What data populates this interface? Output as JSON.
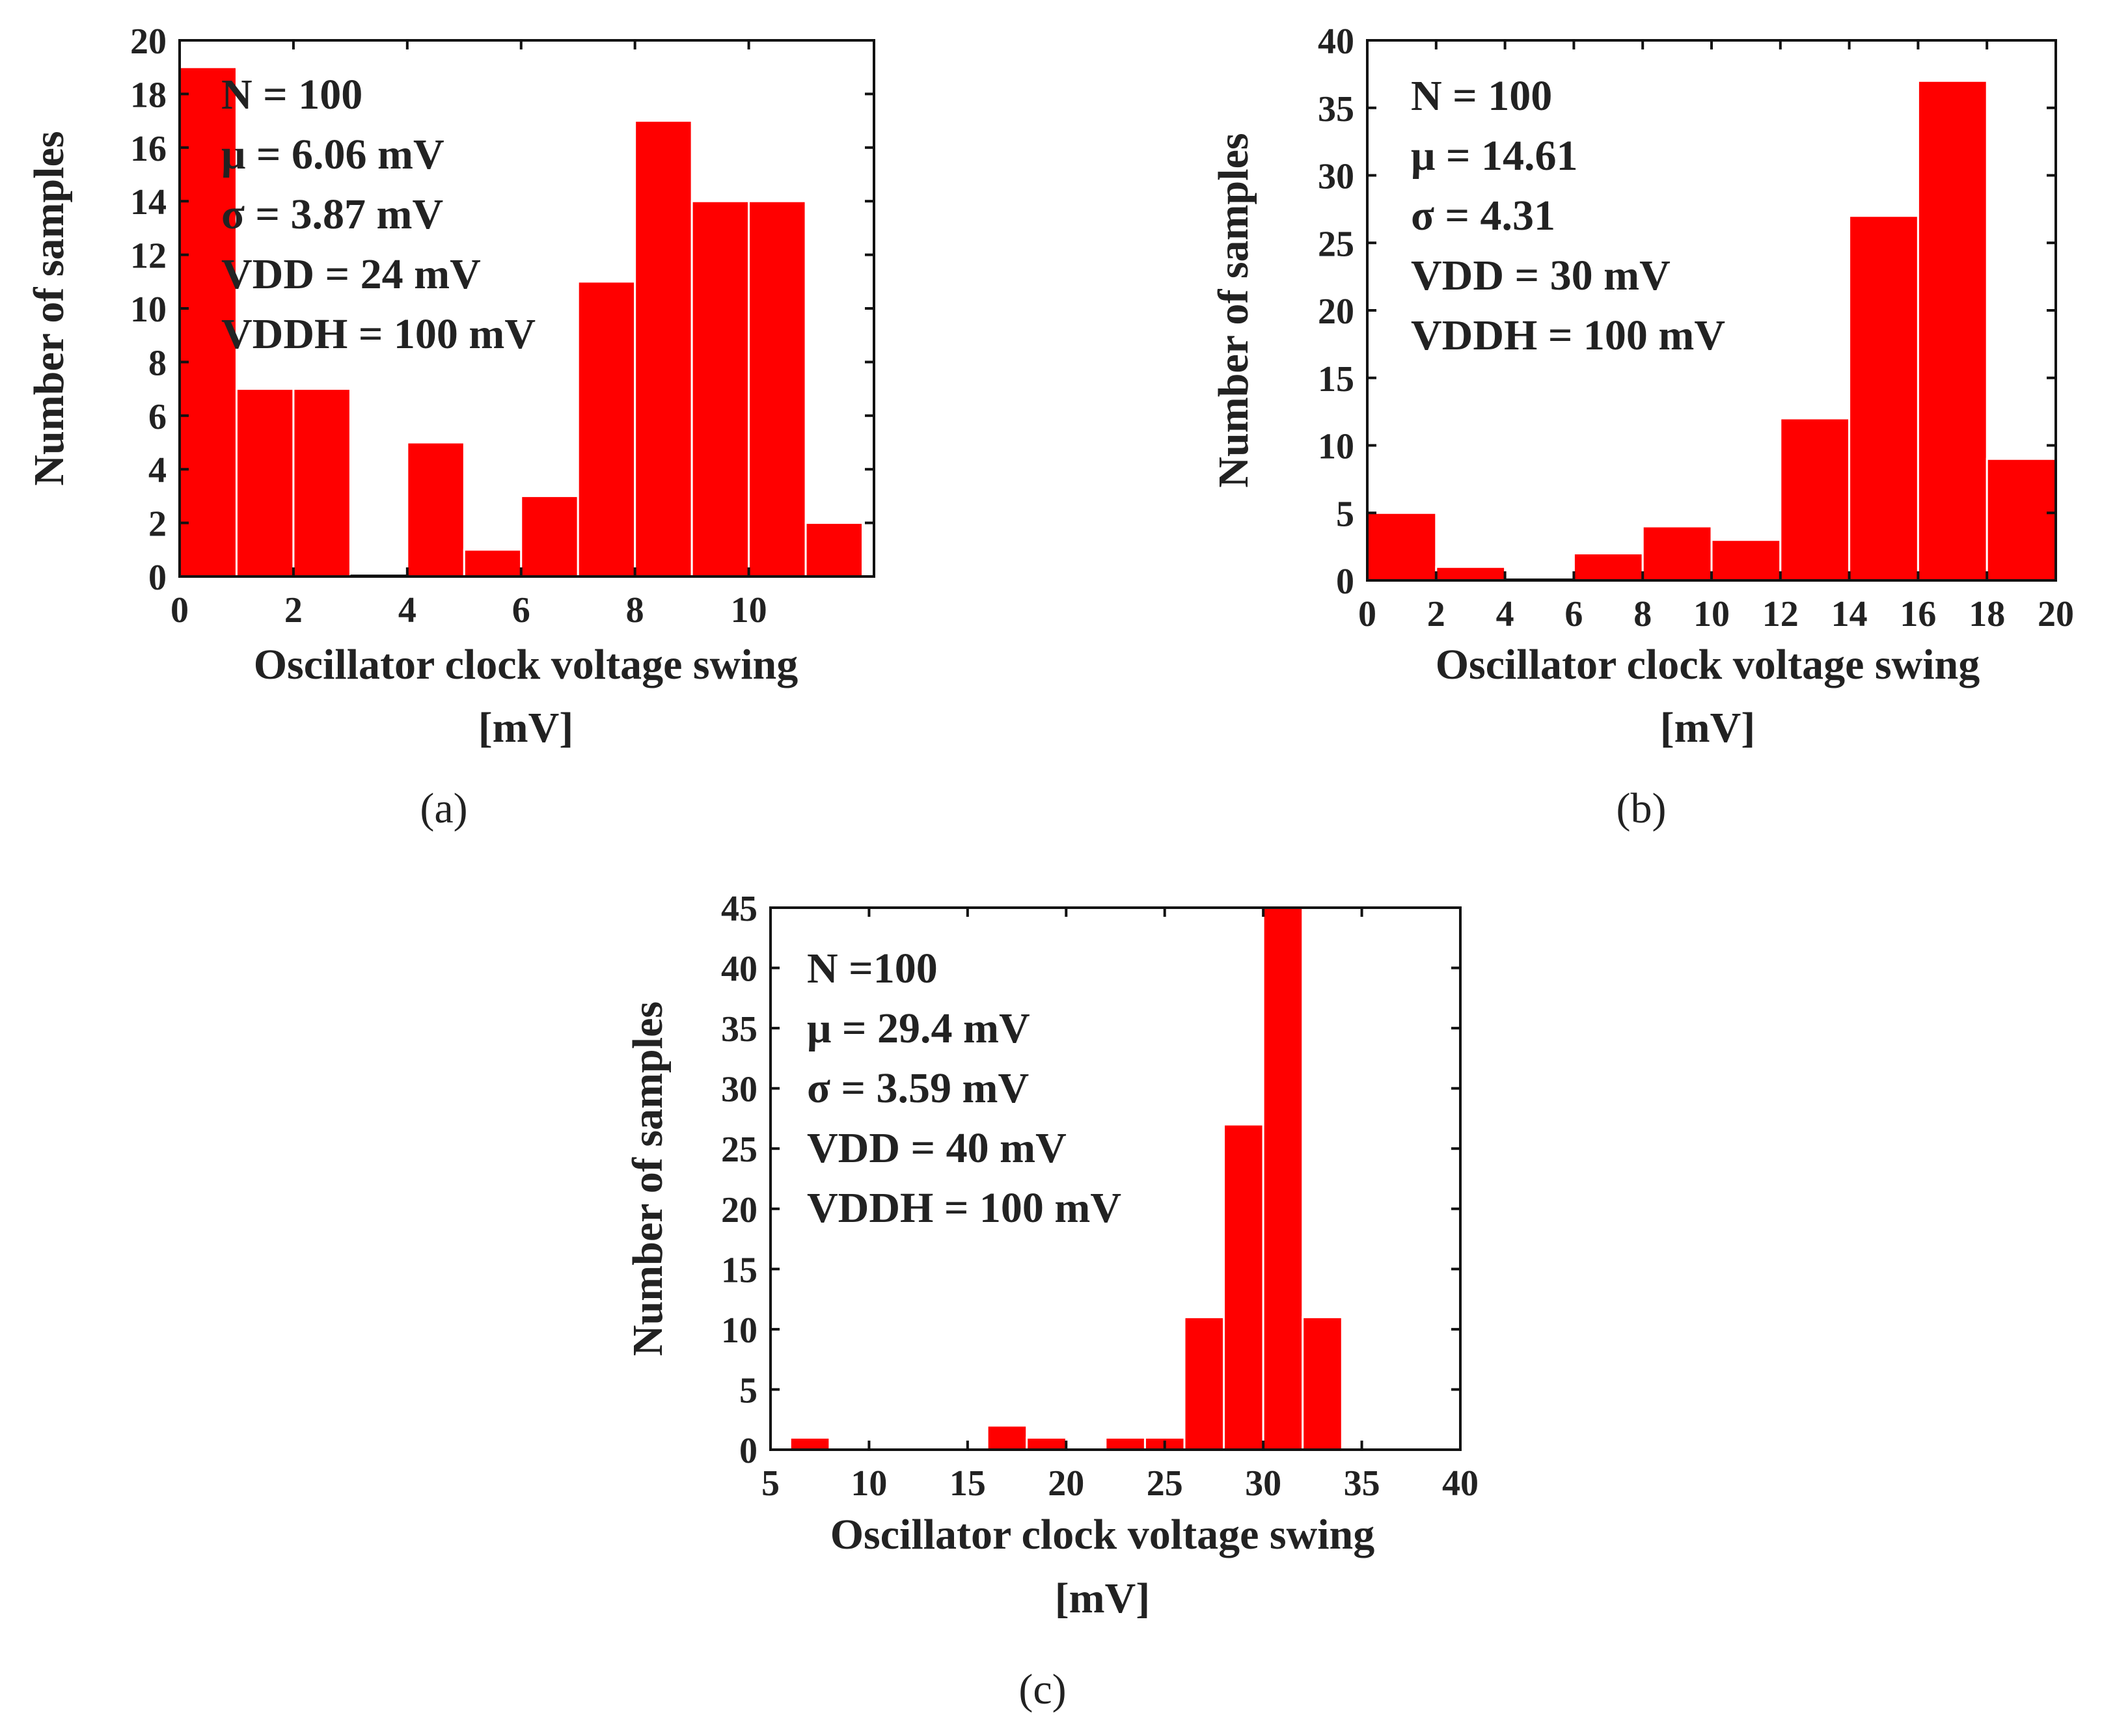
{
  "chart_data": [
    {
      "type": "histogram",
      "panel_label": "(a)",
      "ylabel": "Number of samples",
      "xlabel_line1": "Oscillator clock voltage swing",
      "xlabel_line2": "[mV]",
      "xlim": [
        0,
        12.2
      ],
      "ylim": [
        0,
        20
      ],
      "xticks": [
        0,
        2,
        4,
        6,
        8,
        10
      ],
      "yticks": [
        0,
        2,
        4,
        6,
        8,
        10,
        12,
        14,
        16,
        18,
        20
      ],
      "bars": [
        {
          "x0": 0.0,
          "x1": 1.0,
          "count": 19
        },
        {
          "x0": 1.0,
          "x1": 2.0,
          "count": 7
        },
        {
          "x0": 2.0,
          "x1": 3.0,
          "count": 7
        },
        {
          "x0": 3.0,
          "x1": 4.0,
          "count": 0
        },
        {
          "x0": 4.0,
          "x1": 5.0,
          "count": 5
        },
        {
          "x0": 5.0,
          "x1": 6.0,
          "count": 1
        },
        {
          "x0": 6.0,
          "x1": 7.0,
          "count": 3
        },
        {
          "x0": 7.0,
          "x1": 8.0,
          "count": 11
        },
        {
          "x0": 8.0,
          "x1": 9.0,
          "count": 17
        },
        {
          "x0": 9.0,
          "x1": 10.0,
          "count": 14
        },
        {
          "x0": 10.0,
          "x1": 11.0,
          "count": 14
        },
        {
          "x0": 11.0,
          "x1": 12.0,
          "count": 2
        }
      ],
      "annotations": [
        "N = 100",
        "μ = 6.06 mV",
        "σ = 3.87 mV",
        "VDD = 24 mV",
        "VDDH = 100 mV"
      ],
      "bar_color": "#ff0000"
    },
    {
      "type": "histogram",
      "panel_label": "(b)",
      "ylabel": "Number of samples",
      "xlabel_line1": "Oscillator clock voltage swing",
      "xlabel_line2": "[mV]",
      "xlim": [
        0,
        20
      ],
      "ylim": [
        0,
        40
      ],
      "xticks": [
        0,
        2,
        4,
        6,
        8,
        10,
        12,
        14,
        16,
        18,
        20
      ],
      "yticks": [
        0,
        5,
        10,
        15,
        20,
        25,
        30,
        35,
        40
      ],
      "bars": [
        {
          "x0": 0.0,
          "x1": 2.0,
          "count": 5
        },
        {
          "x0": 2.0,
          "x1": 4.0,
          "count": 1
        },
        {
          "x0": 4.0,
          "x1": 6.0,
          "count": 0
        },
        {
          "x0": 6.0,
          "x1": 8.0,
          "count": 2
        },
        {
          "x0": 8.0,
          "x1": 10.0,
          "count": 4
        },
        {
          "x0": 10.0,
          "x1": 12.0,
          "count": 3
        },
        {
          "x0": 12.0,
          "x1": 14.0,
          "count": 12
        },
        {
          "x0": 14.0,
          "x1": 16.0,
          "count": 27
        },
        {
          "x0": 16.0,
          "x1": 18.0,
          "count": 37
        },
        {
          "x0": 18.0,
          "x1": 20.0,
          "count": 9
        }
      ],
      "annotations": [
        "N = 100",
        "μ = 14.61",
        "σ = 4.31",
        "VDD = 30 mV",
        "VDDH = 100 mV"
      ],
      "bar_color": "#ff0000"
    },
    {
      "type": "histogram",
      "panel_label": "(c)",
      "ylabel": "Number of samples",
      "xlabel_line1": "Oscillator clock voltage swing",
      "xlabel_line2": "[mV]",
      "xlim": [
        5,
        40
      ],
      "ylim": [
        0,
        45
      ],
      "xticks": [
        5,
        10,
        15,
        20,
        25,
        30,
        35,
        40
      ],
      "yticks": [
        0,
        5,
        10,
        15,
        20,
        25,
        30,
        35,
        40,
        45
      ],
      "bars": [
        {
          "x0": 6.0,
          "x1": 8.0,
          "count": 1
        },
        {
          "x0": 16.0,
          "x1": 18.0,
          "count": 2
        },
        {
          "x0": 18.0,
          "x1": 20.0,
          "count": 1
        },
        {
          "x0": 22.0,
          "x1": 24.0,
          "count": 1
        },
        {
          "x0": 24.0,
          "x1": 26.0,
          "count": 1
        },
        {
          "x0": 26.0,
          "x1": 28.0,
          "count": 11
        },
        {
          "x0": 28.0,
          "x1": 30.0,
          "count": 27
        },
        {
          "x0": 30.0,
          "x1": 32.0,
          "count": 45
        },
        {
          "x0": 32.0,
          "x1": 34.0,
          "count": 11
        }
      ],
      "annotations": [
        "N =100",
        "μ = 29.4 mV",
        "σ = 3.59 mV",
        "VDD = 40 mV",
        "VDDH = 100 mV"
      ],
      "bar_color": "#ff0000"
    }
  ]
}
